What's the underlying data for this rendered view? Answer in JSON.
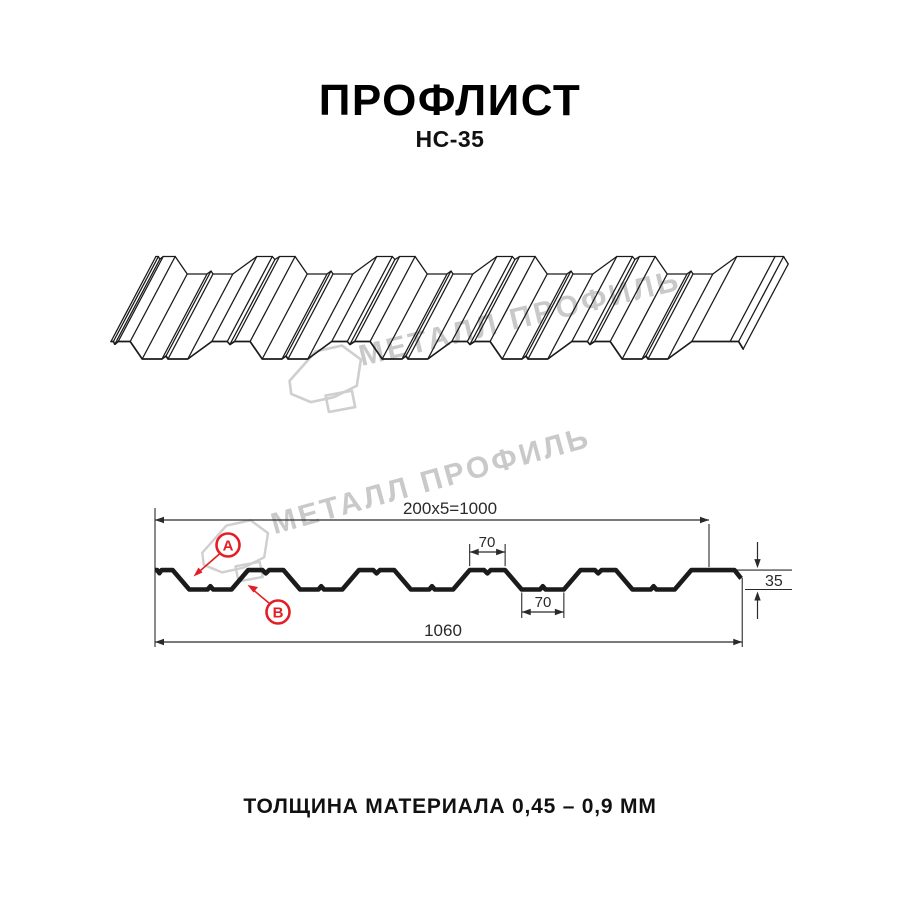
{
  "header": {
    "title": "ПРОФЛИСТ",
    "subtitle": "НС-35"
  },
  "footer": {
    "note": "ТОЛЩИНА МАТЕРИАЛА 0,45 – 0,9 ММ"
  },
  "watermark": {
    "text": "МЕТАЛЛ ПРОФИЛЬ",
    "logo": "metall-profil-logo",
    "color": "#c9c9c9"
  },
  "colors": {
    "background": "#ffffff",
    "line": "#1b1b1b",
    "dimension": "#2a2a2a",
    "accent_red": "#e31e24",
    "watermark_gray": "#c9c9c9"
  },
  "diagram": {
    "dimensions": {
      "top_width": "200x5=1000",
      "rib_top_width": "70",
      "rib_bottom_width": "70",
      "profile_height": "35",
      "full_width": "1060"
    },
    "markers": [
      {
        "label": "A"
      },
      {
        "label": "B"
      }
    ],
    "profile": {
      "name": "НС-35",
      "height_mm": 35,
      "full_width_mm": 1060,
      "working_width_mm": 1000,
      "period_mm": 200,
      "periods": 5,
      "crest_top_mm": 70,
      "valley_bottom_mm": 70
    }
  }
}
